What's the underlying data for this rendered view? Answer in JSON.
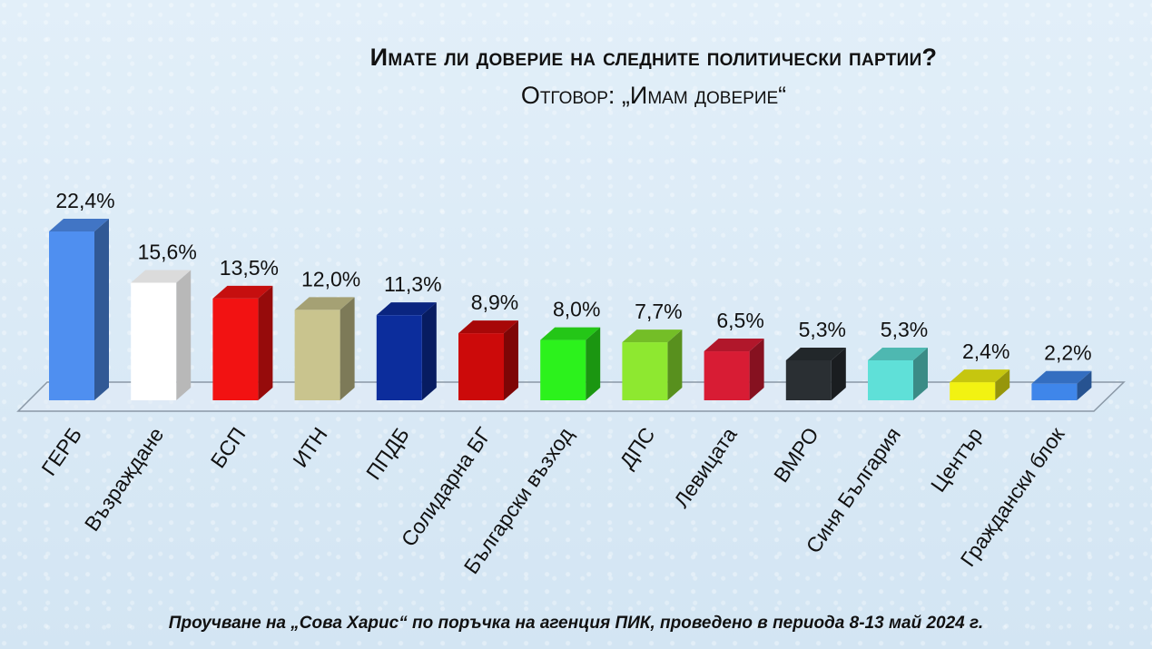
{
  "title": "Имате ли доверие на следните политически партии?",
  "subtitle": "Отговор: „Имам доверие“",
  "footnote": "Проучване на „Сова Харис“ по поръчка на агенция ПИК, проведено в периода 8-13 май 2024 г.",
  "chart_data": {
    "type": "bar",
    "title": "Имате ли доверие на следните политически партии?",
    "subtitle": "Отговор: „Имам доверие“",
    "categories": [
      "ГЕРБ",
      "Възраждане",
      "БСП",
      "ИТН",
      "ППДБ",
      "Солидарна БГ",
      "Български възход",
      "ДПС",
      "Левицата",
      "ВМРО",
      "Синя България",
      "Център",
      "Граждански блок"
    ],
    "values": [
      22.4,
      15.6,
      13.5,
      12.0,
      11.3,
      8.9,
      8.0,
      7.7,
      6.5,
      5.3,
      5.3,
      2.4,
      2.2
    ],
    "value_labels": [
      "22,4%",
      "15,6%",
      "13,5%",
      "12,0%",
      "11,3%",
      "8,9%",
      "8,0%",
      "7,7%",
      "6,5%",
      "5,3%",
      "5,3%",
      "2,4%",
      "2,2%"
    ],
    "colors": [
      "#4f8ff0",
      "#ffffff",
      "#f21212",
      "#c9c48e",
      "#0c2d9c",
      "#cc0a0a",
      "#2cf21c",
      "#8ee830",
      "#d81c34",
      "#2a2f33",
      "#5fe0d8",
      "#f2f212",
      "#3f86ea"
    ],
    "xlabel": "",
    "ylabel": "",
    "ylim": [
      0,
      22.4
    ],
    "grid": false,
    "legend": "none",
    "style": "3d-bar"
  }
}
